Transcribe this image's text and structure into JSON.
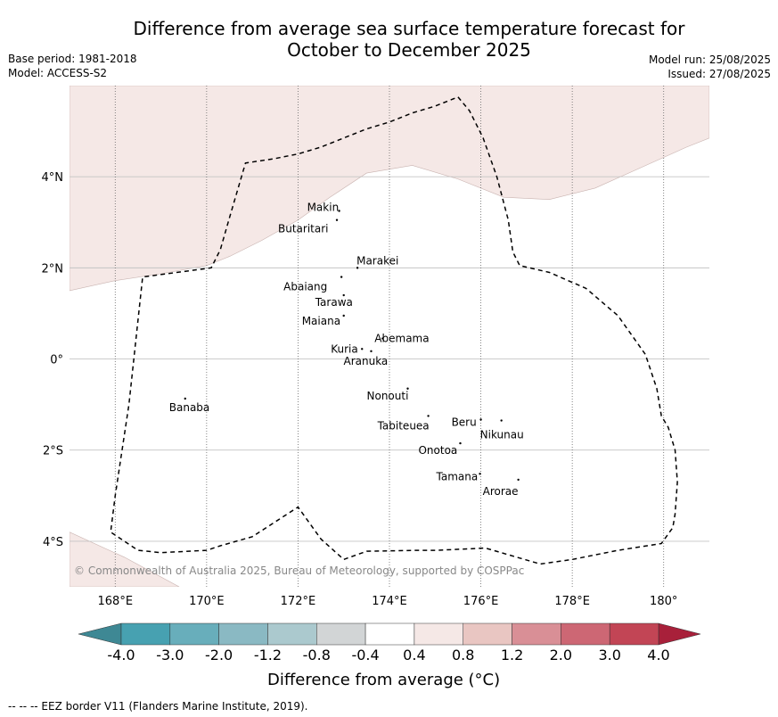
{
  "title": {
    "line1": "Difference from average sea surface temperature forecast for",
    "line2": "October to December 2025"
  },
  "meta_left": {
    "base_period": "Base period: 1981-2018",
    "model": "Model: ACCESS-S2"
  },
  "meta_right": {
    "model_run": "Model run: 25/08/2025",
    "issued": "Issued: 27/08/2025"
  },
  "map": {
    "lon_range": [
      167,
      181
    ],
    "lat_range": [
      -5,
      6
    ],
    "x_ticks": [
      {
        "lon": 168,
        "label": "168°E"
      },
      {
        "lon": 170,
        "label": "170°E"
      },
      {
        "lon": 172,
        "label": "172°E"
      },
      {
        "lon": 174,
        "label": "174°E"
      },
      {
        "lon": 176,
        "label": "176°E"
      },
      {
        "lon": 178,
        "label": "178°E"
      },
      {
        "lon": 180,
        "label": "180°"
      }
    ],
    "y_ticks": [
      {
        "lat": 4,
        "label": "4°N"
      },
      {
        "lat": 2,
        "label": "2°N"
      },
      {
        "lat": 0,
        "label": "0°"
      },
      {
        "lat": -2,
        "label": "2°S"
      },
      {
        "lat": -4,
        "label": "4°S"
      }
    ],
    "background_color": "#ffffff",
    "anomaly_fill_color": "#f5e8e6",
    "anomaly_regions": [
      {
        "range": "0.4 to 0.8",
        "points": [
          [
            167,
            1.5
          ],
          [
            168,
            1.72
          ],
          [
            169,
            1.87
          ],
          [
            170,
            2.05
          ],
          [
            170.5,
            2.25
          ],
          [
            171.2,
            2.6
          ],
          [
            172,
            3.05
          ],
          [
            172.7,
            3.55
          ],
          [
            173.5,
            4.08
          ],
          [
            174.5,
            4.25
          ],
          [
            175.5,
            3.95
          ],
          [
            176.5,
            3.55
          ],
          [
            177.5,
            3.5
          ],
          [
            178.5,
            3.75
          ],
          [
            179.5,
            4.2
          ],
          [
            180.5,
            4.65
          ],
          [
            181,
            4.85
          ],
          [
            181,
            6
          ],
          [
            167,
            6
          ]
        ]
      },
      {
        "range": "0.4 to 0.8",
        "points": [
          [
            167,
            -3.8
          ],
          [
            168.2,
            -4.35
          ],
          [
            169.4,
            -5
          ],
          [
            167,
            -5
          ]
        ]
      }
    ],
    "eez_border": [
      [
        175.5,
        5.75
      ],
      [
        175.75,
        5.45
      ],
      [
        176.05,
        4.85
      ],
      [
        176.35,
        4
      ],
      [
        176.6,
        3.05
      ],
      [
        176.7,
        2.35
      ],
      [
        176.85,
        2.05
      ],
      [
        177.5,
        1.9
      ],
      [
        178.3,
        1.55
      ],
      [
        179,
        0.95
      ],
      [
        179.6,
        0.1
      ],
      [
        179.85,
        -0.65
      ],
      [
        179.95,
        -1.25
      ],
      [
        180.1,
        -1.5
      ],
      [
        180.25,
        -2
      ],
      [
        180.3,
        -2.7
      ],
      [
        180.25,
        -3.4
      ],
      [
        180.2,
        -3.7
      ],
      [
        179.95,
        -4.05
      ],
      [
        179,
        -4.2
      ],
      [
        178,
        -4.4
      ],
      [
        177.3,
        -4.5
      ],
      [
        176.1,
        -4.15
      ],
      [
        175,
        -4.2
      ],
      [
        174.6,
        -4.2
      ],
      [
        173.5,
        -4.22
      ],
      [
        173,
        -4.4
      ],
      [
        172.5,
        -3.95
      ],
      [
        172,
        -3.25
      ],
      [
        171,
        -3.9
      ],
      [
        170.3,
        -4.1
      ],
      [
        170,
        -4.2
      ],
      [
        169,
        -4.25
      ],
      [
        168.5,
        -4.2
      ],
      [
        167.9,
        -3.8
      ],
      [
        168,
        -3
      ],
      [
        168.3,
        -1
      ],
      [
        168.6,
        1.8
      ],
      [
        170.1,
        2.0
      ],
      [
        170.3,
        2.4
      ],
      [
        170.5,
        3.1
      ],
      [
        170.85,
        4.3
      ],
      [
        171.5,
        4.4
      ],
      [
        172,
        4.5
      ],
      [
        172.5,
        4.65
      ],
      [
        173,
        4.85
      ],
      [
        173.5,
        5.05
      ],
      [
        174,
        5.2
      ],
      [
        174.5,
        5.4
      ],
      [
        175,
        5.55
      ],
      [
        175.5,
        5.75
      ]
    ],
    "islands": [
      {
        "name": "Makin",
        "label": "Makin",
        "lon": 172.9,
        "lat": 3.25
      },
      {
        "name": "Butaritari",
        "label": "Butaritari",
        "lon": 172.85,
        "lat": 3.05
      },
      {
        "name": "Marakei",
        "label": "Marakei",
        "lon": 173.3,
        "lat": 2.0
      },
      {
        "name": "Abaiang",
        "label": "Abaiang",
        "lon": 172.95,
        "lat": 1.8
      },
      {
        "name": "Tarawa",
        "label": "Tarawa",
        "lon": 173.0,
        "lat": 1.4
      },
      {
        "name": "Maiana",
        "label": "Maiana",
        "lon": 173.0,
        "lat": 0.95
      },
      {
        "name": "Abemama",
        "label": "Abemama",
        "lon": 173.85,
        "lat": 0.45
      },
      {
        "name": "Kuria",
        "label": "Kuria",
        "lon": 173.4,
        "lat": 0.22
      },
      {
        "name": "Aranuka",
        "label": "Aranuka",
        "lon": 173.6,
        "lat": 0.17
      },
      {
        "name": "Nonouti",
        "label": "Nonouti",
        "lon": 174.4,
        "lat": -0.65
      },
      {
        "name": "Tabiteuea",
        "label": "Tabiteuea",
        "lon": 174.85,
        "lat": -1.25
      },
      {
        "name": "Beru",
        "label": "Beru",
        "lon": 176.0,
        "lat": -1.33
      },
      {
        "name": "Nikunau",
        "label": "Nikunau",
        "lon": 176.45,
        "lat": -1.35
      },
      {
        "name": "Onotoa",
        "label": "Onotoa",
        "lon": 175.55,
        "lat": -1.85
      },
      {
        "name": "Banaba",
        "label": "Banaba",
        "lon": 169.53,
        "lat": -0.87
      },
      {
        "name": "Tamana",
        "label": "Tamana",
        "lon": 175.98,
        "lat": -2.52
      },
      {
        "name": "Arorae",
        "label": "Arorae",
        "lon": 176.82,
        "lat": -2.65
      }
    ],
    "copyright": "© Commonwealth of Australia 2025, Bureau of Meteorology, supported by COSPPac"
  },
  "colorbar": {
    "title": "Difference from average (°C)",
    "under_color": "#3e8894",
    "over_color": "#a8203a",
    "bins": [
      {
        "from": "-4.0",
        "to": "-3.0",
        "color": "#47a1b1"
      },
      {
        "from": "-3.0",
        "to": "-2.0",
        "color": "#68aebb"
      },
      {
        "from": "-2.0",
        "to": "-1.2",
        "color": "#8ab9c3"
      },
      {
        "from": "-1.2",
        "to": "-0.8",
        "color": "#abc9ce"
      },
      {
        "from": "-0.8",
        "to": "-0.4",
        "color": "#d2d5d6"
      },
      {
        "from": "-0.4",
        "to": "0.4",
        "color": "#ffffff"
      },
      {
        "from": "0.4",
        "to": "0.8",
        "color": "#f5e8e6"
      },
      {
        "from": "0.8",
        "to": "1.2",
        "color": "#e9c6c2"
      },
      {
        "from": "1.2",
        "to": "2.0",
        "color": "#d98f96"
      },
      {
        "from": "2.0",
        "to": "3.0",
        "color": "#cd6774"
      },
      {
        "from": "3.0",
        "to": "4.0",
        "color": "#c24555"
      }
    ],
    "tick_labels": [
      "-4.0",
      "-3.0",
      "-2.0",
      "-1.2",
      "-0.8",
      "-0.4",
      "0.4",
      "0.8",
      "1.2",
      "2.0",
      "3.0",
      "4.0"
    ]
  },
  "footer": "--  --  -- EEZ border V11 (Flanders Marine Institute, 2019)."
}
